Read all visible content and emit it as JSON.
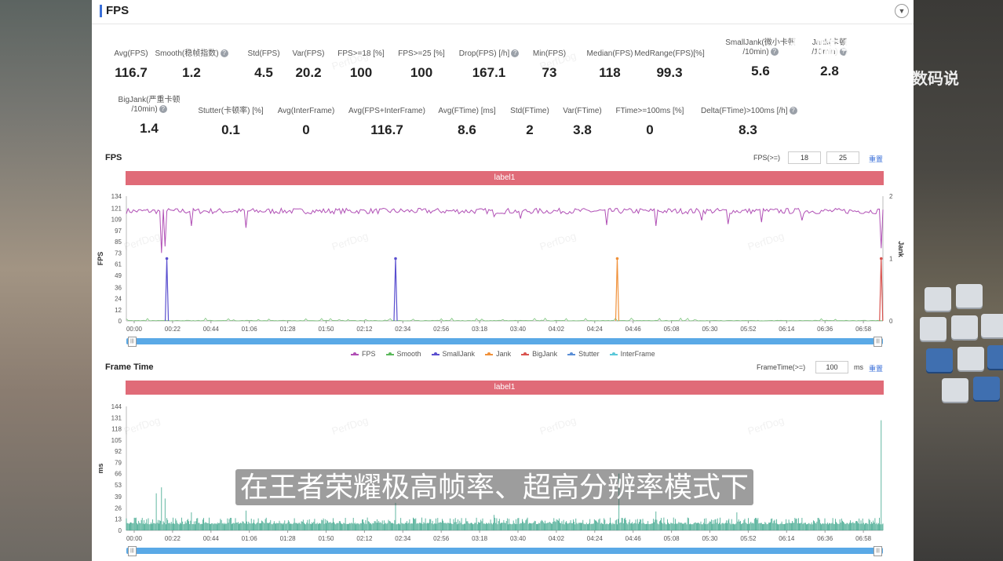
{
  "panel": {
    "title": "FPS"
  },
  "stats_row1": [
    {
      "label": "Avg(FPS)",
      "value": "116.7",
      "help": false
    },
    {
      "label": "Smooth(稳帧指数)",
      "value": "1.2",
      "help": true
    },
    {
      "label": "Std(FPS)",
      "value": "4.5",
      "help": false
    },
    {
      "label": "Var(FPS)",
      "value": "20.2",
      "help": false
    },
    {
      "label": "FPS>=18 [%]",
      "value": "100",
      "help": false
    },
    {
      "label": "FPS>=25 [%]",
      "value": "100",
      "help": false
    },
    {
      "label": "Drop(FPS) [/h]",
      "value": "167.1",
      "help": true
    },
    {
      "label": "Min(FPS)",
      "value": "73",
      "help": false
    },
    {
      "label": "Median(FPS)",
      "value": "118",
      "help": false
    },
    {
      "label": "MedRange(FPS)[%]",
      "value": "99.3",
      "help": false
    },
    {
      "label": "SmallJank(微小卡顿",
      "label2": "/10min)",
      "value": "5.6",
      "help": true
    },
    {
      "label": "Jank(卡顿",
      "label2": "/10min)",
      "value": "2.8",
      "help": true
    }
  ],
  "stats_row2": [
    {
      "label": "BigJank(严重卡顿",
      "label2": "/10min)",
      "value": "1.4",
      "help": true
    },
    {
      "label": "Stutter(卡顿率) [%]",
      "value": "0.1",
      "help": false
    },
    {
      "label": "Avg(InterFrame)",
      "value": "0",
      "help": false
    },
    {
      "label": "Avg(FPS+InterFrame)",
      "value": "116.7",
      "help": false
    },
    {
      "label": "Avg(FTime) [ms]",
      "value": "8.6",
      "help": false
    },
    {
      "label": "Std(FTime)",
      "value": "2",
      "help": false
    },
    {
      "label": "Var(FTime)",
      "value": "3.8",
      "help": false
    },
    {
      "label": "FTime>=100ms [%]",
      "value": "0",
      "help": false
    },
    {
      "label": "Delta(FTime)>100ms [/h]",
      "value": "8.3",
      "help": true
    }
  ],
  "fps_section": {
    "title": "FPS",
    "threshold_label": "FPS(>=)",
    "threshold_values": [
      "18",
      "25"
    ],
    "reset_label": "重置",
    "label_bar": "label1"
  },
  "frametime_section": {
    "title": "Frame Time",
    "threshold_label": "FrameTime(>=)",
    "threshold_value": "100",
    "threshold_unit": "ms",
    "reset_label": "重置",
    "label_bar": "label1"
  },
  "legend": [
    {
      "name": "FPS",
      "color": "#b04fb5"
    },
    {
      "name": "Smooth",
      "color": "#5cb85c"
    },
    {
      "name": "SmallJank",
      "color": "#5a4fcf"
    },
    {
      "name": "Jank",
      "color": "#f0913a"
    },
    {
      "name": "BigJank",
      "color": "#d9534f"
    },
    {
      "name": "Stutter",
      "color": "#5b8fd6"
    },
    {
      "name": "InterFrame",
      "color": "#5bc8d9"
    }
  ],
  "watermark": "PerfDog",
  "overlay": {
    "brand": "视频号",
    "brand_sub": "玩数码说",
    "subtitle": "在王者荣耀极高帧率、超高分辨率模式下"
  },
  "chart_data": [
    {
      "type": "line",
      "title": "FPS",
      "ylabel": "FPS",
      "y2label": "Jank",
      "ylim": [
        0,
        134
      ],
      "y2lim": [
        0,
        2
      ],
      "yticks": [
        0,
        12,
        24,
        36,
        49,
        61,
        73,
        85,
        97,
        109,
        121,
        134
      ],
      "y2ticks": [
        0,
        1,
        2
      ],
      "xticks": [
        "00:00",
        "00:22",
        "00:44",
        "01:06",
        "01:28",
        "01:50",
        "02:12",
        "02:34",
        "02:56",
        "03:18",
        "03:40",
        "04:02",
        "04:24",
        "04:46",
        "05:08",
        "05:30",
        "05:52",
        "06:14",
        "06:36",
        "06:58"
      ],
      "x_range_seconds": [
        0,
        430
      ],
      "fps_baseline": 118,
      "fps_dips": [
        [
          20,
          73
        ],
        [
          22,
          80
        ],
        [
          37,
          102
        ],
        [
          68,
          100
        ],
        [
          209,
          112
        ],
        [
          224,
          110
        ],
        [
          273,
          103
        ],
        [
          301,
          102
        ],
        [
          327,
          108
        ],
        [
          342,
          104
        ],
        [
          361,
          106
        ],
        [
          384,
          108
        ],
        [
          429,
          78
        ]
      ],
      "series": [
        {
          "name": "SmallJank",
          "spikes": [
            [
              23,
              1
            ],
            [
              153,
              1
            ]
          ]
        },
        {
          "name": "Jank",
          "spikes": [
            [
              279,
              1
            ]
          ]
        },
        {
          "name": "BigJank",
          "spikes": [
            [
              429,
              1
            ]
          ]
        }
      ],
      "legend_position": "bottom"
    },
    {
      "type": "bar",
      "title": "Frame Time",
      "ylabel": "ms",
      "ylim": [
        0,
        144
      ],
      "yticks": [
        0,
        13,
        26,
        39,
        53,
        66,
        79,
        92,
        105,
        118,
        131,
        144
      ],
      "xticks": [
        "00:00",
        "00:22",
        "00:44",
        "01:06",
        "01:28",
        "01:50",
        "02:12",
        "02:34",
        "02:56",
        "03:18",
        "03:40",
        "04:02",
        "04:24",
        "04:46",
        "05:08",
        "05:30",
        "05:52",
        "06:14",
        "06:36",
        "06:58"
      ],
      "x_range_seconds": [
        0,
        430
      ],
      "frametime_baseline": 9,
      "frametime_spikes": [
        [
          17,
          43
        ],
        [
          20,
          50
        ],
        [
          22,
          37
        ],
        [
          37,
          21
        ],
        [
          68,
          23
        ],
        [
          153,
          32
        ],
        [
          209,
          18
        ],
        [
          280,
          66
        ],
        [
          301,
          22
        ],
        [
          347,
          21
        ],
        [
          429,
          128
        ]
      ]
    }
  ]
}
